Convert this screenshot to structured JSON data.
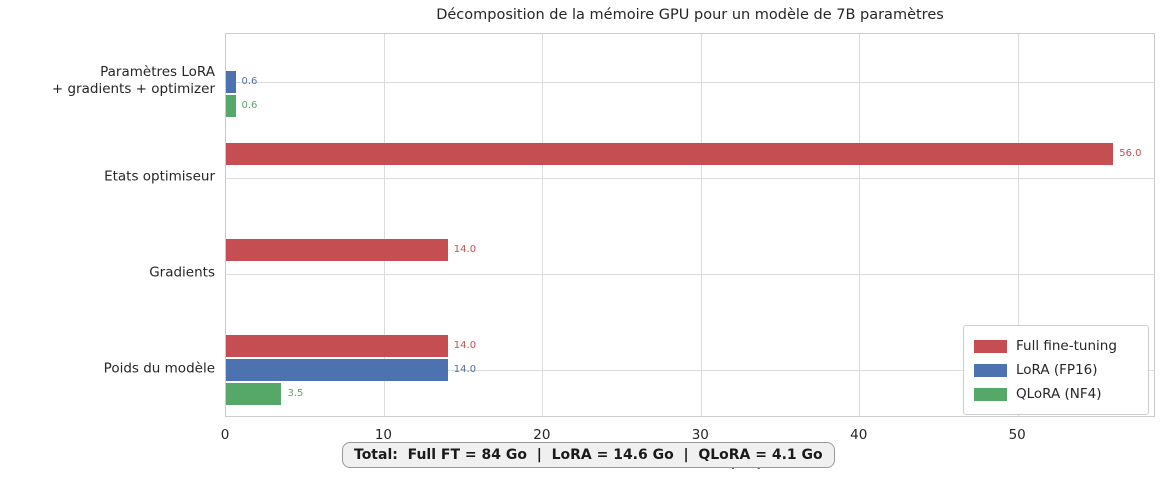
{
  "chart_data": {
    "type": "bar",
    "orientation": "horizontal",
    "title": "Décomposition de la mémoire GPU pour un modèle de 7B paramètres",
    "xlabel": "Mémoire GPU (Go)",
    "categories": [
      "Paramètres LoRA\n+ gradients + optimizer",
      "Etats optimiseur",
      "Gradients",
      "Poids du modèle"
    ],
    "series": [
      {
        "name": "Full fine-tuning",
        "color": "#c44e52",
        "values": [
          0,
          56.0,
          14.0,
          14.0
        ]
      },
      {
        "name": "LoRA (FP16)",
        "color": "#4c72b0",
        "values": [
          0.6,
          0,
          0,
          14.0
        ]
      },
      {
        "name": "QLoRA (NF4)",
        "color": "#55a868",
        "values": [
          0.6,
          0,
          0,
          3.5
        ]
      }
    ],
    "value_label_format": "one_decimal",
    "xticks": [
      0,
      10,
      20,
      30,
      40,
      50
    ],
    "xlim": [
      0,
      58.7
    ],
    "grid": true,
    "legend_position": "lower right",
    "annotation": "Total:  Full FT = 84 Go  |  LoRA = 14.6 Go  |  QLoRA = 4.1 Go",
    "colors": {
      "grid": "#dcdcdc",
      "spine": "#cccccc",
      "text": "#262626",
      "annotation_bg": "#f0f0f0",
      "annotation_border": "#999999"
    }
  }
}
